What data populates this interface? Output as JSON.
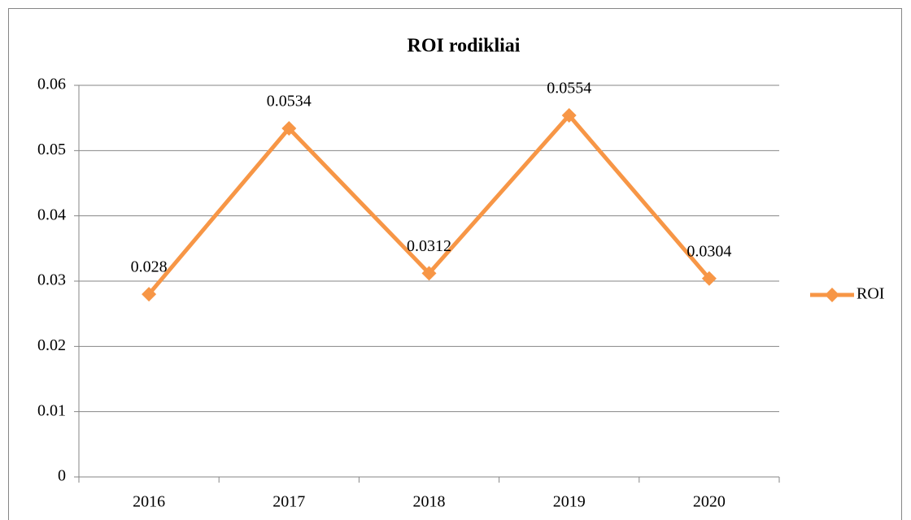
{
  "chart_data": {
    "type": "line",
    "title": "ROI rodikliai",
    "categories": [
      "2016",
      "2017",
      "2018",
      "2019",
      "2020"
    ],
    "series": [
      {
        "name": "ROI",
        "color": "#f79646",
        "values": [
          0.028,
          0.0534,
          0.0312,
          0.0554,
          0.0304
        ]
      }
    ],
    "ylim": [
      0,
      0.06
    ],
    "yticks": [
      0,
      0.01,
      0.02,
      0.03,
      0.04,
      0.05,
      0.06
    ],
    "grid": true,
    "legend": "right"
  }
}
